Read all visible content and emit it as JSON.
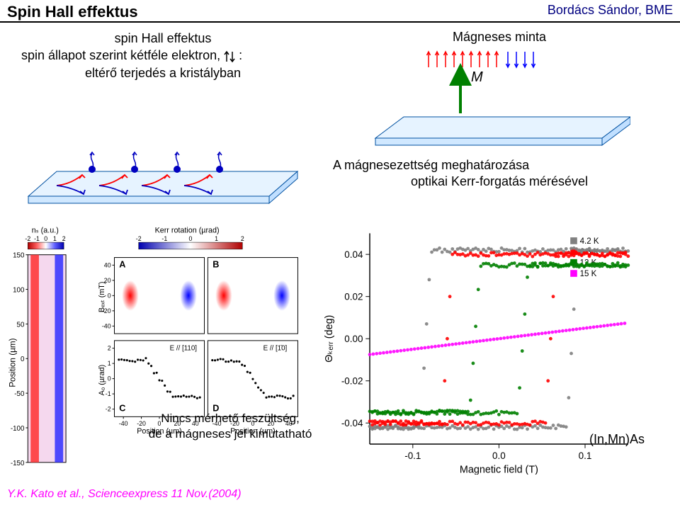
{
  "header": {
    "title": "Spin Hall effektus",
    "author": "Bordács Sándor, BME"
  },
  "leftText": {
    "l1": "spin Hall effektus",
    "l2a": "spin állapot szerint kétféle elektron, ",
    "l2b": " :",
    "l3": "eltérő terjedés a kristályban"
  },
  "sample": {
    "label": "Mágneses minta",
    "M": "M",
    "slab_top_fill": "#e6f3ff",
    "slab_top_stroke": "#0050a0",
    "up_arrow_color": "#ff0000",
    "down_arrow_color": "#0000ff",
    "big_arrow_color": "#008000",
    "n_up": 9,
    "n_down": 4
  },
  "spinSlab": {
    "fill": "#e6f3ff",
    "stroke": "#0050a0",
    "electron_color": "#0000c0",
    "spin_up_color": "#ff0000",
    "spin_down_color": "#0000ff",
    "curve_colors": [
      "#ff0000",
      "#0000c0"
    ]
  },
  "magText": {
    "l1": "A mágnesezettség meghatározása",
    "l2": "optikai Kerr-forgatás mérésével"
  },
  "kato": {
    "ylabel": "Position (µm)",
    "yticks": [
      -150,
      -100,
      -50,
      0,
      50,
      100,
      150
    ],
    "colorbar1_label": "nₛ (a.u.)",
    "colorbar1_ticks": [
      "-2",
      "-1",
      "0",
      "1",
      "2"
    ],
    "panels": [
      "A",
      "B",
      "C",
      "D"
    ],
    "bext_label": "Bₑₓₜ (mT)",
    "bext_ticks": [
      -40,
      -20,
      0,
      20,
      40
    ],
    "a0_label": "A₀ (µrad)",
    "a0_ticks": [
      -2,
      -1,
      0,
      1,
      2
    ],
    "kerr_label": "Kerr rotation (µrad)",
    "kerr_ticks": [
      "-2",
      "-1",
      "0",
      "1",
      "2"
    ],
    "e110": "E // [110]",
    "e1m10": "E // [1̄0]",
    "xlabel": "Position (µm)",
    "xtick": [
      -40,
      -20,
      0,
      20,
      40
    ],
    "strip_left_color": "#ff0000",
    "strip_right_color": "#0000ff",
    "strip_bg": "#f8e0f0"
  },
  "hyst": {
    "ylabel": "Θₖₑᵣᵣ (deg)",
    "xlabel": "Magnetic field (T)",
    "xlim": [
      -0.15,
      0.15
    ],
    "ylim": [
      -0.05,
      0.05
    ],
    "xticks": [
      -0.1,
      0.0,
      0.1
    ],
    "yticks": [
      -0.04,
      -0.02,
      0.0,
      0.02,
      0.04
    ],
    "legend": [
      "4.2 K",
      "6.3 K",
      "12 K",
      "15 K"
    ],
    "colors": {
      "4.2K": "#808080",
      "6.3K": "#ff0000",
      "12K": "#008000",
      "15K": "#ff00ff"
    },
    "loops": {
      "4.2K": {
        "coerc": 0.085,
        "sat": 0.042
      },
      "6.3K": {
        "coerc": 0.06,
        "sat": 0.04
      },
      "12K": {
        "coerc": 0.028,
        "sat": 0.035
      },
      "15K": {
        "coerc": 0.0,
        "sat": 0.005,
        "slope": 0.05
      }
    },
    "marker_size": 2.5,
    "bg": "#ffffff",
    "axis_color": "#000000"
  },
  "bottom": {
    "nincs1": "Nincs mérhető feszültség,",
    "nincs2": "de a mágneses jel kimutatható",
    "citation": "Y.K. Kato et al., Scienceexpress 11 Nov.(2004)",
    "inmnas": "(In,Mn)As"
  }
}
